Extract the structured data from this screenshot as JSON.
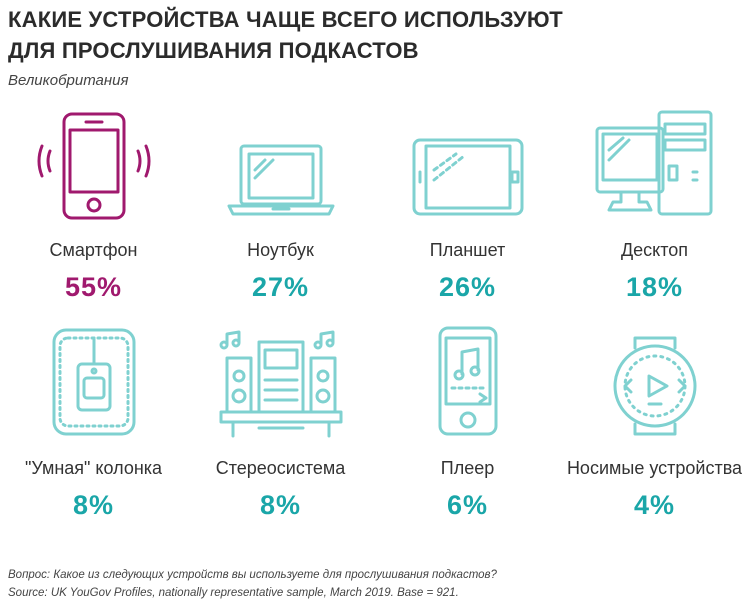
{
  "title_line1": "КАКИЕ УСТРОЙСТВА ЧАЩЕ ВСЕГО ИСПОЛЬЗУЮТ",
  "title_line2": "ДЛЯ ПРОСЛУШИВАНИЯ ПОДКАСТОВ",
  "subtitle": "Великобритания",
  "colors": {
    "highlight": "#a0196e",
    "teal": "#1aa6a8",
    "icon_teal": "#7fd1d0"
  },
  "chart_data": {
    "type": "table",
    "title": "КАКИЕ УСТРОЙСТВА ЧАЩЕ ВСЕГО ИСПОЛЬЗУЮТ ДЛЯ ПРОСЛУШИВАНИЯ ПОДКАСТОВ",
    "subtitle": "Великобритания",
    "categories": [
      "Смартфон",
      "Ноутбук",
      "Планшет",
      "Десктоп",
      "\"Умная\" колонка",
      "Стереосистема",
      "Плеер",
      "Носимые устройства"
    ],
    "values": [
      55,
      27,
      26,
      18,
      8,
      8,
      6,
      4
    ],
    "value_labels": [
      "55%",
      "27%",
      "26%",
      "18%",
      "8%",
      "8%",
      "6%",
      "4%"
    ],
    "icons": [
      "smartphone-icon",
      "laptop-icon",
      "tablet-icon",
      "desktop-icon",
      "smart-speaker-icon",
      "stereo-icon",
      "player-icon",
      "wearable-icon"
    ]
  },
  "footer_line1": "Вопрос: Какое из следующих устройств вы используете для прослушивания подкастов?",
  "footer_line2": "Source: UK YouGov Profiles, nationally representative sample, March 2019. Base = 921."
}
